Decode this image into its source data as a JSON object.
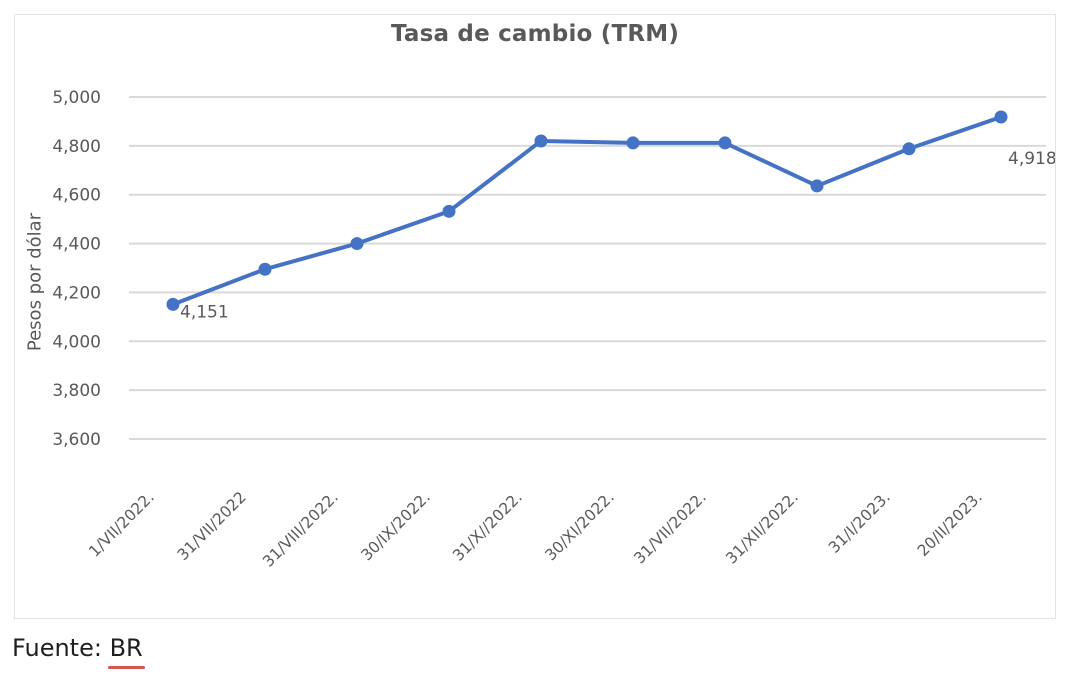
{
  "chart_data": {
    "type": "line",
    "title": "Tasa de cambio (TRM)",
    "xlabel": "",
    "ylabel": "Pesos por dólar",
    "categories": [
      "1/VII/2022.",
      "31/VII/2022",
      "31/VIII/2022.",
      "30/IX/2022.",
      "31/X//2022.",
      "30/XI/2022.",
      "31/VII/2022.",
      "31/XII/2022.",
      "31/I/2023.",
      "20/II/2023."
    ],
    "series": [
      {
        "name": "TRM",
        "color": "#4472c4",
        "values": [
          4151,
          4295,
          4400,
          4532,
          4820,
          4812,
          4812,
          4636,
          4788,
          4918
        ]
      }
    ],
    "data_labels": [
      {
        "index": 0,
        "text": "4,151"
      },
      {
        "index": 9,
        "text": "4,918"
      }
    ],
    "yticks": [
      3600,
      3800,
      4000,
      4200,
      4400,
      4600,
      4800,
      5000
    ],
    "ytick_labels": [
      "3,600",
      "3,800",
      "4,000",
      "4,200",
      "4,400",
      "4,600",
      "4,800",
      "5,000"
    ],
    "ylim": [
      3600,
      5000
    ],
    "grid": true,
    "legend": "none",
    "gridline_color": "#d9d9d9"
  },
  "footer": {
    "source_prefix": "Fuente: ",
    "source_ref": "BR"
  }
}
